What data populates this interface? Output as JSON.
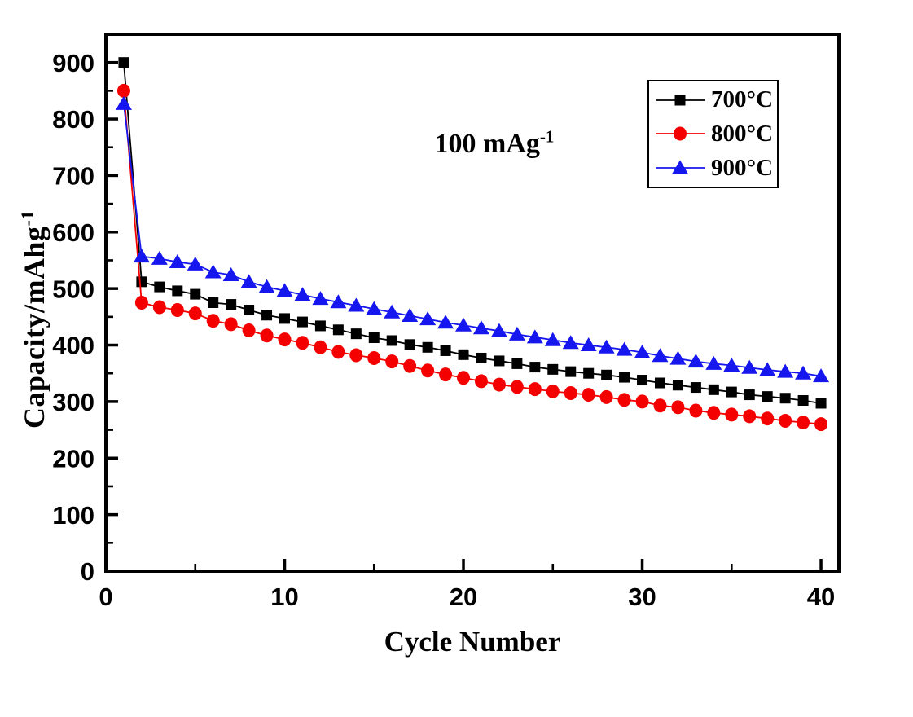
{
  "chart_data": {
    "type": "line",
    "title": "",
    "xlabel": "Cycle Number",
    "ylabel": "Capacity/mAhg",
    "ylabel_sup": "-1",
    "annotation": "100 mAg",
    "annotation_sup": "-1",
    "xlim": [
      0,
      41
    ],
    "ylim": [
      0,
      950
    ],
    "x_major_ticks": [
      0,
      10,
      20,
      30,
      40
    ],
    "x_minor_ticks": [
      5,
      15,
      25,
      35
    ],
    "y_major_ticks": [
      0,
      100,
      200,
      300,
      400,
      500,
      600,
      700,
      800,
      900
    ],
    "y_minor_ticks": [
      50,
      150,
      250,
      350,
      450,
      550,
      650,
      750,
      850
    ],
    "grid": false,
    "legend_position": "inside-top-right",
    "axis_color": "#000000",
    "x": [
      1,
      2,
      3,
      4,
      5,
      6,
      7,
      8,
      9,
      10,
      11,
      12,
      13,
      14,
      15,
      16,
      17,
      18,
      19,
      20,
      21,
      22,
      23,
      24,
      25,
      26,
      27,
      28,
      29,
      30,
      31,
      32,
      33,
      34,
      35,
      36,
      37,
      38,
      39,
      40
    ],
    "series": [
      {
        "name": "700°C",
        "marker": "square",
        "color": "#000000",
        "values": [
          900,
          512,
          503,
          496,
          490,
          475,
          472,
          462,
          453,
          447,
          441,
          434,
          427,
          420,
          413,
          408,
          401,
          396,
          390,
          383,
          377,
          372,
          367,
          361,
          357,
          353,
          350,
          347,
          343,
          338,
          333,
          329,
          325,
          321,
          317,
          312,
          309,
          306,
          302,
          297
        ]
      },
      {
        "name": "800°C",
        "marker": "circle",
        "color": "#f40000",
        "values": [
          850,
          475,
          467,
          462,
          456,
          443,
          437,
          426,
          417,
          410,
          404,
          396,
          388,
          382,
          377,
          371,
          363,
          355,
          348,
          342,
          336,
          330,
          326,
          322,
          318,
          315,
          312,
          308,
          303,
          300,
          293,
          290,
          284,
          280,
          277,
          274,
          270,
          266,
          263,
          260
        ]
      },
      {
        "name": "900°C",
        "marker": "triangle",
        "color": "#1616ee",
        "values": [
          827,
          557,
          553,
          547,
          543,
          529,
          524,
          512,
          503,
          496,
          489,
          482,
          476,
          470,
          464,
          458,
          452,
          446,
          440,
          435,
          430,
          425,
          419,
          414,
          409,
          404,
          400,
          396,
          392,
          387,
          381,
          376,
          371,
          367,
          364,
          360,
          356,
          353,
          350,
          345
        ]
      }
    ]
  }
}
